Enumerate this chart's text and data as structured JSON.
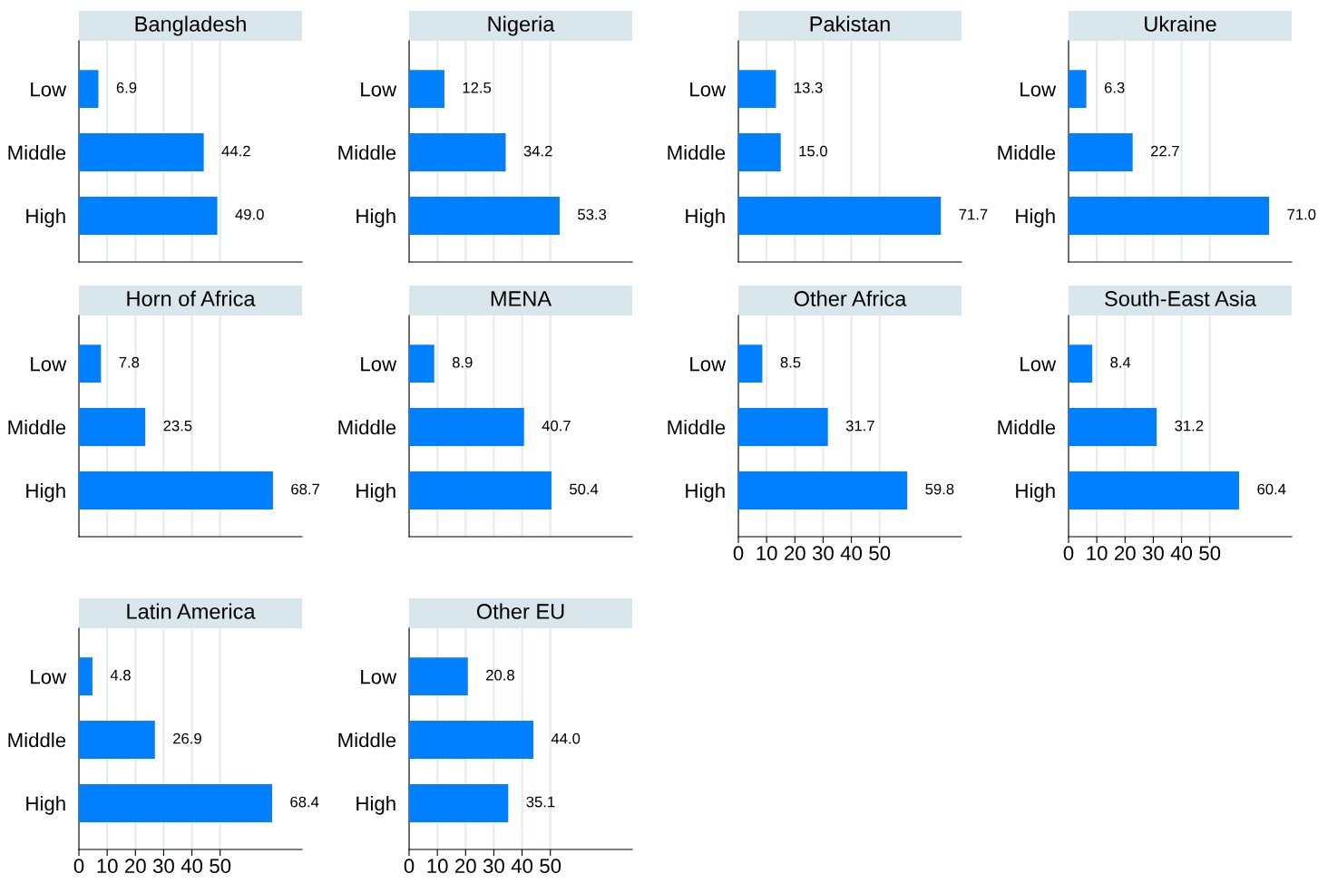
{
  "chart_data": [
    {
      "type": "bar",
      "orientation": "horizontal",
      "title": "Bangladesh",
      "categories": [
        "Low",
        "Middle",
        "High"
      ],
      "values": [
        6.9,
        44.2,
        49.0
      ],
      "value_labels": [
        "6.9",
        "44.2",
        "49.0"
      ],
      "color": "#0080ff",
      "xlim": [
        0,
        79
      ],
      "xticks": [
        0,
        10,
        20,
        30,
        40,
        50
      ],
      "grid": "x",
      "tick_labels": "y"
    },
    {
      "type": "bar",
      "orientation": "horizontal",
      "title": "Nigeria",
      "categories": [
        "Low",
        "Middle",
        "High"
      ],
      "values": [
        12.5,
        34.2,
        53.3
      ],
      "value_labels": [
        "12.5",
        "34.2",
        "53.3"
      ],
      "color": "#0080ff",
      "xlim": [
        0,
        79
      ],
      "xticks": [
        0,
        10,
        20,
        30,
        40,
        50
      ],
      "grid": "x",
      "tick_labels": "y"
    },
    {
      "type": "bar",
      "orientation": "horizontal",
      "title": "Pakistan",
      "categories": [
        "Low",
        "Middle",
        "High"
      ],
      "values": [
        13.3,
        15.0,
        71.7
      ],
      "value_labels": [
        "13.3",
        "15.0",
        "71.7"
      ],
      "color": "#0080ff",
      "xlim": [
        0,
        79
      ],
      "xticks": [
        0,
        10,
        20,
        30,
        40,
        50
      ],
      "grid": "x",
      "tick_labels": "y"
    },
    {
      "type": "bar",
      "orientation": "horizontal",
      "title": "Ukraine",
      "categories": [
        "Low",
        "Middle",
        "High"
      ],
      "values": [
        6.3,
        22.7,
        71.0
      ],
      "value_labels": [
        "6.3",
        "22.7",
        "71.0"
      ],
      "color": "#0080ff",
      "xlim": [
        0,
        79
      ],
      "xticks": [
        0,
        10,
        20,
        30,
        40,
        50
      ],
      "grid": "x",
      "tick_labels": "y"
    },
    {
      "type": "bar",
      "orientation": "horizontal",
      "title": "Horn of Africa",
      "categories": [
        "Low",
        "Middle",
        "High"
      ],
      "values": [
        7.8,
        23.5,
        68.7
      ],
      "value_labels": [
        "7.8",
        "23.5",
        "68.7"
      ],
      "color": "#0080ff",
      "xlim": [
        0,
        79
      ],
      "xticks": [
        0,
        10,
        20,
        30,
        40,
        50
      ],
      "grid": "x",
      "tick_labels": "y"
    },
    {
      "type": "bar",
      "orientation": "horizontal",
      "title": "MENA",
      "categories": [
        "Low",
        "Middle",
        "High"
      ],
      "values": [
        8.9,
        40.7,
        50.4
      ],
      "value_labels": [
        "8.9",
        "40.7",
        "50.4"
      ],
      "color": "#0080ff",
      "xlim": [
        0,
        79
      ],
      "xticks": [
        0,
        10,
        20,
        30,
        40,
        50
      ],
      "grid": "x",
      "tick_labels": "y"
    },
    {
      "type": "bar",
      "orientation": "horizontal",
      "title": "Other Africa",
      "categories": [
        "Low",
        "Middle",
        "High"
      ],
      "values": [
        8.5,
        31.7,
        59.8
      ],
      "value_labels": [
        "8.5",
        "31.7",
        "59.8"
      ],
      "color": "#0080ff",
      "xlim": [
        0,
        79
      ],
      "xticks": [
        0,
        10,
        20,
        30,
        40,
        50
      ],
      "grid": "x"
    },
    {
      "type": "bar",
      "orientation": "horizontal",
      "title": "South-East Asia",
      "categories": [
        "Low",
        "Middle",
        "High"
      ],
      "values": [
        8.4,
        31.2,
        60.4
      ],
      "value_labels": [
        "8.4",
        "31.2",
        "60.4"
      ],
      "color": "#0080ff",
      "xlim": [
        0,
        79
      ],
      "xticks": [
        0,
        10,
        20,
        30,
        40,
        50
      ],
      "grid": "x"
    },
    {
      "type": "bar",
      "orientation": "horizontal",
      "title": "Latin America",
      "categories": [
        "Low",
        "Middle",
        "High"
      ],
      "values": [
        4.8,
        26.9,
        68.4
      ],
      "value_labels": [
        "4.8",
        "26.9",
        "68.4"
      ],
      "color": "#0080ff",
      "xlim": [
        0,
        79
      ],
      "xticks": [
        0,
        10,
        20,
        30,
        40,
        50
      ],
      "grid": "x"
    },
    {
      "type": "bar",
      "orientation": "horizontal",
      "title": "Other EU",
      "categories": [
        "Low",
        "Middle",
        "High"
      ],
      "values": [
        20.8,
        44.0,
        35.1
      ],
      "value_labels": [
        "20.8",
        "44.0",
        "35.1"
      ],
      "color": "#0080ff",
      "xlim": [
        0,
        79
      ],
      "xticks": [
        0,
        10,
        20,
        30,
        40,
        50
      ],
      "grid": "x"
    }
  ]
}
